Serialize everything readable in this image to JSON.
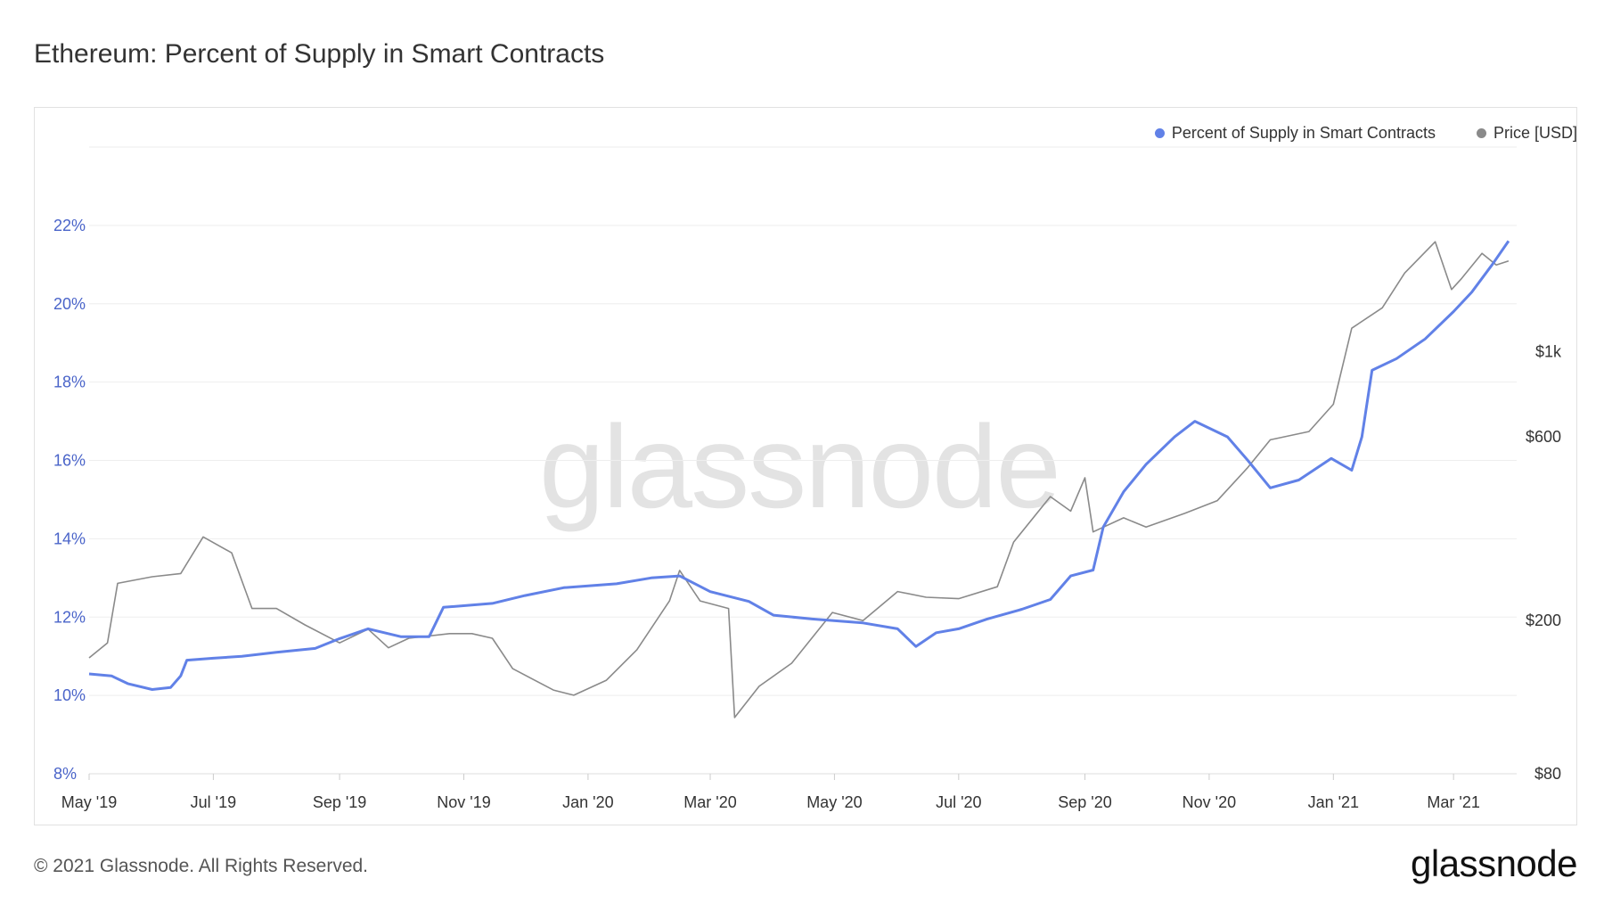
{
  "header": {
    "title": "Ethereum: Percent of Supply in Smart Contracts"
  },
  "watermark": "glassnode",
  "footer": {
    "copyright": "© 2021 Glassnode. All Rights Reserved.",
    "logo": "glassnode"
  },
  "colors": {
    "series_primary": "#6181e7",
    "series_price": "#8a8a8a",
    "grid": "#eeeeee",
    "left_axis": "#4a64c9"
  },
  "chart_data": {
    "type": "line",
    "title": "Ethereum: Percent of Supply in Smart Contracts",
    "legend_position": "top-right",
    "grid": true,
    "x_ticks": [
      "May '19",
      "Jul '19",
      "Sep '19",
      "Nov '19",
      "Jan '20",
      "Mar '20",
      "May '20",
      "Jul '20",
      "Sep '20",
      "Nov '20",
      "Jan '21",
      "Mar '21"
    ],
    "x_range": [
      "2019-05-01",
      "2021-04-01"
    ],
    "y_left": {
      "ticks": [
        "8%",
        "10%",
        "12%",
        "14%",
        "16%",
        "18%",
        "20%",
        "22%"
      ],
      "range": [
        8,
        24
      ]
    },
    "y_right": {
      "scale": "log",
      "ticks": [
        "$80",
        "$200",
        "$600",
        "$1k"
      ],
      "range": [
        80,
        3400
      ]
    },
    "series": [
      {
        "name": "Percent of Supply in Smart Contracts",
        "axis": "left",
        "color": "#6181e7",
        "points": [
          [
            "2019-05-01",
            10.55
          ],
          [
            "2019-05-12",
            10.5
          ],
          [
            "2019-05-20",
            10.3
          ],
          [
            "2019-06-01",
            10.15
          ],
          [
            "2019-06-10",
            10.2
          ],
          [
            "2019-06-15",
            10.5
          ],
          [
            "2019-06-18",
            10.9
          ],
          [
            "2019-07-01",
            10.95
          ],
          [
            "2019-07-15",
            11.0
          ],
          [
            "2019-08-01",
            11.1
          ],
          [
            "2019-08-20",
            11.2
          ],
          [
            "2019-09-01",
            11.45
          ],
          [
            "2019-09-15",
            11.7
          ],
          [
            "2019-10-01",
            11.5
          ],
          [
            "2019-10-15",
            11.5
          ],
          [
            "2019-10-22",
            12.25
          ],
          [
            "2019-11-15",
            12.35
          ],
          [
            "2019-12-01",
            12.55
          ],
          [
            "2019-12-20",
            12.75
          ],
          [
            "2020-01-15",
            12.85
          ],
          [
            "2020-02-01",
            13.0
          ],
          [
            "2020-02-15",
            13.05
          ],
          [
            "2020-03-01",
            12.65
          ],
          [
            "2020-03-20",
            12.4
          ],
          [
            "2020-04-01",
            12.05
          ],
          [
            "2020-04-20",
            11.95
          ],
          [
            "2020-05-15",
            11.85
          ],
          [
            "2020-06-01",
            11.7
          ],
          [
            "2020-06-10",
            11.25
          ],
          [
            "2020-06-20",
            11.6
          ],
          [
            "2020-07-01",
            11.7
          ],
          [
            "2020-07-15",
            11.95
          ],
          [
            "2020-08-01",
            12.2
          ],
          [
            "2020-08-15",
            12.45
          ],
          [
            "2020-08-25",
            13.05
          ],
          [
            "2020-09-05",
            13.2
          ],
          [
            "2020-09-10",
            14.3
          ],
          [
            "2020-09-20",
            15.2
          ],
          [
            "2020-10-01",
            15.9
          ],
          [
            "2020-10-15",
            16.6
          ],
          [
            "2020-10-25",
            17.0
          ],
          [
            "2020-11-10",
            16.6
          ],
          [
            "2020-11-20",
            16.0
          ],
          [
            "2020-12-01",
            15.3
          ],
          [
            "2020-12-15",
            15.5
          ],
          [
            "2020-12-31",
            16.05
          ],
          [
            "2021-01-10",
            15.75
          ],
          [
            "2021-01-15",
            16.6
          ],
          [
            "2021-01-20",
            18.3
          ],
          [
            "2021-02-01",
            18.6
          ],
          [
            "2021-02-15",
            19.1
          ],
          [
            "2021-03-01",
            19.8
          ],
          [
            "2021-03-10",
            20.3
          ],
          [
            "2021-03-20",
            21.0
          ],
          [
            "2021-03-28",
            21.6
          ]
        ]
      },
      {
        "name": "Price [USD]",
        "axis": "right",
        "color": "#8a8a8a",
        "points": [
          [
            "2019-05-01",
            160
          ],
          [
            "2019-05-10",
            175
          ],
          [
            "2019-05-15",
            250
          ],
          [
            "2019-06-01",
            260
          ],
          [
            "2019-06-15",
            265
          ],
          [
            "2019-06-26",
            330
          ],
          [
            "2019-07-10",
            300
          ],
          [
            "2019-07-20",
            215
          ],
          [
            "2019-08-01",
            215
          ],
          [
            "2019-08-15",
            195
          ],
          [
            "2019-09-01",
            175
          ],
          [
            "2019-09-15",
            190
          ],
          [
            "2019-09-25",
            170
          ],
          [
            "2019-10-05",
            180
          ],
          [
            "2019-10-25",
            185
          ],
          [
            "2019-11-05",
            185
          ],
          [
            "2019-11-15",
            180
          ],
          [
            "2019-11-25",
            150
          ],
          [
            "2019-12-15",
            132
          ],
          [
            "2019-12-25",
            128
          ],
          [
            "2020-01-10",
            140
          ],
          [
            "2020-01-25",
            168
          ],
          [
            "2020-02-10",
            225
          ],
          [
            "2020-02-15",
            270
          ],
          [
            "2020-02-25",
            225
          ],
          [
            "2020-03-10",
            215
          ],
          [
            "2020-03-13",
            112
          ],
          [
            "2020-03-25",
            135
          ],
          [
            "2020-04-10",
            155
          ],
          [
            "2020-04-30",
            210
          ],
          [
            "2020-05-15",
            200
          ],
          [
            "2020-06-01",
            238
          ],
          [
            "2020-06-15",
            230
          ],
          [
            "2020-07-01",
            228
          ],
          [
            "2020-07-20",
            245
          ],
          [
            "2020-07-28",
            320
          ],
          [
            "2020-08-15",
            420
          ],
          [
            "2020-08-25",
            385
          ],
          [
            "2020-09-01",
            470
          ],
          [
            "2020-09-05",
            340
          ],
          [
            "2020-09-20",
            370
          ],
          [
            "2020-10-01",
            350
          ],
          [
            "2020-10-20",
            380
          ],
          [
            "2020-11-05",
            410
          ],
          [
            "2020-11-20",
            500
          ],
          [
            "2020-12-01",
            590
          ],
          [
            "2020-12-20",
            620
          ],
          [
            "2021-01-01",
            730
          ],
          [
            "2021-01-10",
            1150
          ],
          [
            "2021-01-25",
            1300
          ],
          [
            "2021-02-05",
            1600
          ],
          [
            "2021-02-20",
            1930
          ],
          [
            "2021-02-28",
            1450
          ],
          [
            "2021-03-05",
            1550
          ],
          [
            "2021-03-15",
            1800
          ],
          [
            "2021-03-22",
            1680
          ],
          [
            "2021-03-28",
            1720
          ]
        ]
      }
    ]
  }
}
